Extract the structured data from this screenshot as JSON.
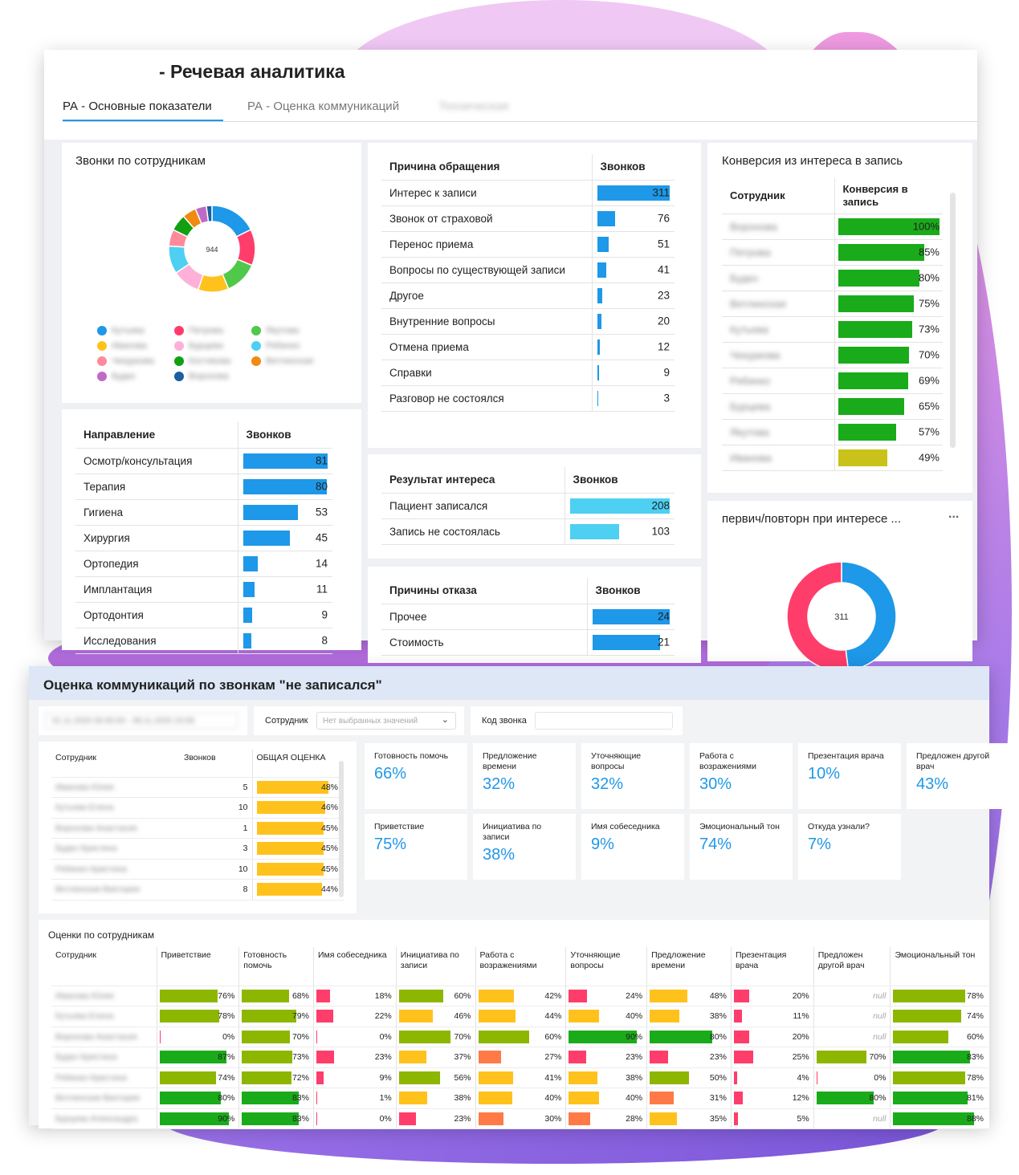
{
  "colors": {
    "blue": "#1e98e8",
    "cyan": "#4dd0f1",
    "dgreen": "#1aab1a",
    "lgreen": "#8db600",
    "yellow": "#ffc21c",
    "olive": "#c8c21a",
    "orange": "#ff7a47",
    "red": "#ff3d6b",
    "lightred": "#ff8a80",
    "accent": "#1e98e8"
  },
  "top": {
    "title": "- Речевая аналитика",
    "tabs": [
      {
        "label": "РА - Основные показатели",
        "active": true
      },
      {
        "label": "РА - Оценка коммуникаций"
      },
      {
        "label": "Техническая"
      }
    ],
    "employees_chart": {
      "title": "Звонки по сотрудникам",
      "center": "944",
      "legend": [
        {
          "name": "Кутьева",
          "color": "#1e98e8"
        },
        {
          "name": "Петрова",
          "color": "#ff3d6b"
        },
        {
          "name": "Якутова",
          "color": "#50c84a"
        },
        {
          "name": "Иванова",
          "color": "#ffc21c"
        },
        {
          "name": "Бурцева",
          "color": "#ffb0d8"
        },
        {
          "name": "Рябинко",
          "color": "#4dd0f1"
        },
        {
          "name": "Чекуркова",
          "color": "#ff8a9c"
        },
        {
          "name": "Костикова",
          "color": "#12a012"
        },
        {
          "name": "Ветлинская",
          "color": "#f08a10"
        },
        {
          "name": "Будко",
          "color": "#c06ac8"
        },
        {
          "name": "Воронова",
          "color": "#1a5fa0"
        }
      ],
      "slices": [
        17,
        13,
        12,
        11,
        10,
        10,
        6,
        6,
        5,
        4,
        2
      ]
    },
    "reasons": {
      "h1": "Причина обращения",
      "h2": "Звонков",
      "max": 311,
      "rows": [
        {
          "label": "Интерес к записи",
          "value": 311
        },
        {
          "label": "Звонок от страховой",
          "value": 76
        },
        {
          "label": "Перенос приема",
          "value": 51
        },
        {
          "label": "Вопросы по существующей записи",
          "value": 41
        },
        {
          "label": "Другое",
          "value": 23
        },
        {
          "label": "Внутренние вопросы",
          "value": 20
        },
        {
          "label": "Отмена приема",
          "value": 12
        },
        {
          "label": "Справки",
          "value": 9
        },
        {
          "label": "Разговор не состоялся",
          "value": 3
        }
      ]
    },
    "conversion": {
      "title": "Конверсия из интереса в запись",
      "h1": "Сотрудник",
      "h2": "Конверсия в запись",
      "rows": [
        {
          "name": "Воронова",
          "value": "100%",
          "pct": 100
        },
        {
          "name": "Петрова",
          "value": "85%",
          "pct": 85
        },
        {
          "name": "Будко",
          "value": "80%",
          "pct": 80
        },
        {
          "name": "Ветлинская",
          "value": "75%",
          "pct": 75
        },
        {
          "name": "Кутьева",
          "value": "73%",
          "pct": 73
        },
        {
          "name": "Чекуркова",
          "value": "70%",
          "pct": 70
        },
        {
          "name": "Рябинко",
          "value": "69%",
          "pct": 69
        },
        {
          "name": "Бурцева",
          "value": "65%",
          "pct": 65
        },
        {
          "name": "Якутова",
          "value": "57%",
          "pct": 57
        },
        {
          "name": "Иванова",
          "value": "49%",
          "pct": 49
        }
      ]
    },
    "direction": {
      "h1": "Направление",
      "h2": "Звонков",
      "max": 81,
      "rows": [
        {
          "label": "Осмотр/консультация",
          "value": 81
        },
        {
          "label": "Терапия",
          "value": 80
        },
        {
          "label": "Гигиена",
          "value": 53
        },
        {
          "label": "Хирургия",
          "value": 45
        },
        {
          "label": "Ортопедия",
          "value": 14
        },
        {
          "label": "Имплантация",
          "value": 11
        },
        {
          "label": "Ортодонтия",
          "value": 9
        },
        {
          "label": "Исследования",
          "value": 8
        }
      ]
    },
    "interest": {
      "h1": "Результат интереса",
      "h2": "Звонков",
      "max": 208,
      "rows": [
        {
          "label": "Пациент записался",
          "value": 208
        },
        {
          "label": "Запись не состоялась",
          "value": 103
        }
      ]
    },
    "refusal": {
      "h1": "Причины отказа",
      "h2": "Звонков",
      "max": 24,
      "rows": [
        {
          "label": "Прочее",
          "value": 24
        },
        {
          "label": "Стоимость",
          "value": 21
        }
      ]
    },
    "primary": {
      "title": "первич/повторн при интересе ...",
      "menu": "...",
      "center": "311",
      "slices": [
        {
          "value": 48,
          "color": "#1e98e8"
        },
        {
          "value": 52,
          "color": "#ff3d6b"
        }
      ]
    }
  },
  "bottom": {
    "title": "Оценка коммуникаций по звонкам \"не записался\"",
    "date_filter": "01.11.2020 00:00:00 - 08.11.2020 23:59",
    "employee_label": "Сотрудник",
    "employee_placeholder": "Нет выбранных значений",
    "code_label": "Код звонка",
    "summary": {
      "h1": "Сотрудник",
      "h2": "Звонков",
      "h3": "ОБЩАЯ ОЦЕНКА",
      "rows": [
        {
          "name": "Иванова Юлия",
          "calls": "5",
          "score": "48%",
          "pct": 48
        },
        {
          "name": "Кутьева Елена",
          "calls": "10",
          "score": "46%",
          "pct": 46
        },
        {
          "name": "Воронова Анастасия",
          "calls": "1",
          "score": "45%",
          "pct": 45
        },
        {
          "name": "Будко Кристина",
          "calls": "3",
          "score": "45%",
          "pct": 45
        },
        {
          "name": "Рябинко Кристина",
          "calls": "10",
          "score": "45%",
          "pct": 45
        },
        {
          "name": "Ветлинская Виктория",
          "calls": "8",
          "score": "44%",
          "pct": 44
        }
      ]
    },
    "kpis": [
      {
        "label": "Готовность помочь",
        "value": "66%"
      },
      {
        "label": "Предложение времени",
        "value": "32%"
      },
      {
        "label": "Уточняющие вопросы",
        "value": "32%"
      },
      {
        "label": "Работа с возражениями",
        "value": "30%"
      },
      {
        "label": "Презентация врача",
        "value": "10%"
      },
      {
        "label": "Предложен другой врач",
        "value": "43%"
      },
      {
        "label": "Приветствие",
        "value": "75%"
      },
      {
        "label": "Инициатива по записи",
        "value": "38%"
      },
      {
        "label": "Имя собеседника",
        "value": "9%"
      },
      {
        "label": "Эмоциональный тон",
        "value": "74%"
      },
      {
        "label": "Откуда узнали?",
        "value": "7%"
      }
    ],
    "scores": {
      "title": "Оценки по сотрудникам",
      "headers": [
        "Сотрудник",
        "Приветствие",
        "Готовность помочь",
        "Имя собеседника",
        "Инициатива по записи",
        "Работа с возражениями",
        "Уточняющие вопросы",
        "Предложение времени",
        "Презентация врача",
        "Предложен другой врач",
        "Эмоциональный тон"
      ],
      "rows": [
        {
          "name": "Иванова Юлия",
          "cells": [
            "76%",
            "68%",
            "18%",
            "60%",
            "42%",
            "24%",
            "48%",
            "20%",
            "null",
            "78%"
          ]
        },
        {
          "name": "Кутьева Елена",
          "cells": [
            "78%",
            "79%",
            "22%",
            "46%",
            "44%",
            "40%",
            "38%",
            "11%",
            "null",
            "74%"
          ]
        },
        {
          "name": "Воронова Анастасия",
          "cells": [
            "0%",
            "70%",
            "0%",
            "70%",
            "60%",
            "90%",
            "80%",
            "20%",
            "null",
            "60%"
          ]
        },
        {
          "name": "Будко Кристина",
          "cells": [
            "87%",
            "73%",
            "23%",
            "37%",
            "27%",
            "23%",
            "23%",
            "25%",
            "70%",
            "83%"
          ]
        },
        {
          "name": "Рябинко Кристина",
          "cells": [
            "74%",
            "72%",
            "9%",
            "56%",
            "41%",
            "38%",
            "50%",
            "4%",
            "0%",
            "78%"
          ]
        },
        {
          "name": "Ветлинская Виктория",
          "cells": [
            "80%",
            "83%",
            "1%",
            "38%",
            "40%",
            "40%",
            "31%",
            "12%",
            "80%",
            "81%"
          ]
        },
        {
          "name": "Бурцева Александра",
          "cells": [
            "90%",
            "83%",
            "0%",
            "23%",
            "30%",
            "28%",
            "35%",
            "5%",
            "null",
            "88%"
          ]
        }
      ]
    }
  }
}
